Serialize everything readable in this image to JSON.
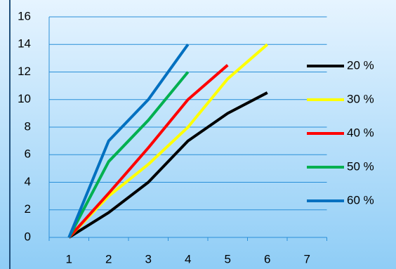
{
  "chart_data": {
    "type": "line",
    "categories": [
      "1",
      "2",
      "3",
      "4",
      "5",
      "6",
      "7"
    ],
    "series": [
      {
        "name": "20 %",
        "color": "#000000",
        "values": [
          0,
          1.8,
          4,
          7,
          9,
          10.5,
          null
        ]
      },
      {
        "name": "30 %",
        "color": "#ffff00",
        "values": [
          0,
          3,
          5.3,
          8,
          11.5,
          14,
          null
        ]
      },
      {
        "name": "40 %",
        "color": "#ff0000",
        "values": [
          0,
          3.2,
          6.5,
          10,
          12.5,
          null,
          null
        ]
      },
      {
        "name": "50 %",
        "color": "#00b050",
        "values": [
          0,
          5.5,
          8.5,
          12,
          null,
          null,
          null
        ]
      },
      {
        "name": "60 %",
        "color": "#0070c0",
        "values": [
          0,
          7,
          10,
          14,
          null,
          null,
          null
        ]
      }
    ],
    "ylim": [
      0,
      16
    ],
    "yticks": [
      0,
      2,
      4,
      6,
      8,
      10,
      12,
      14,
      16
    ],
    "grid": true,
    "legend": "right"
  }
}
